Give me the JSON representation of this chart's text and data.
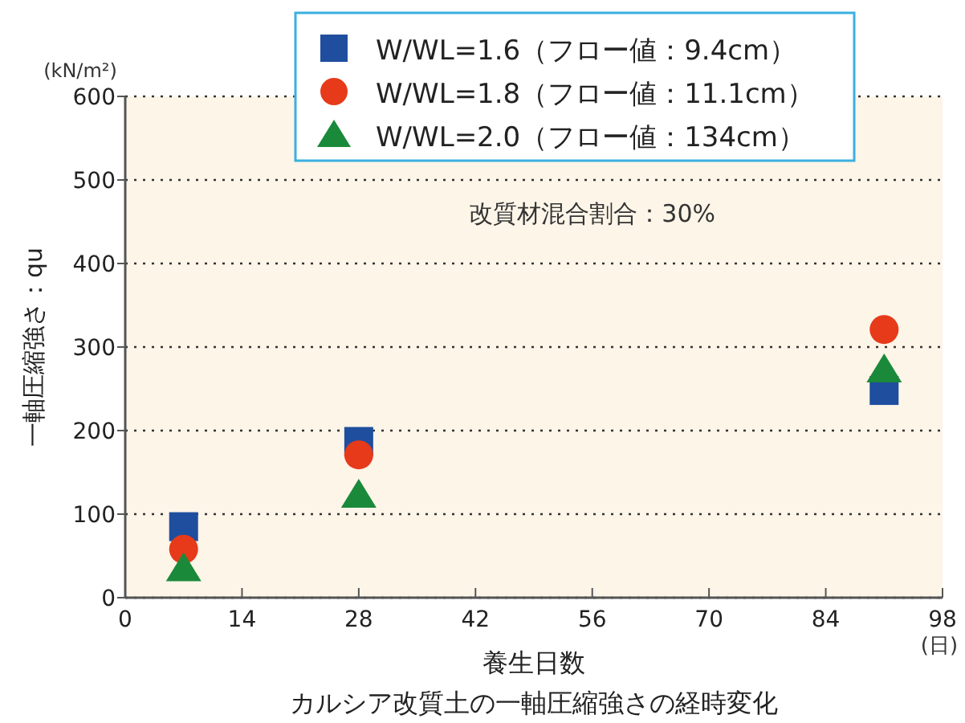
{
  "chart_data": {
    "type": "scatter",
    "title": "カルシア改質土の一軸圧縮強さの経時変化",
    "xlabel": "養生日数",
    "ylabel": "一軸圧縮強さ：qu",
    "annotations": [
      "(kN/m²)",
      "(日)",
      "改質材混合割合：30%"
    ],
    "x": [
      7,
      28,
      91
    ],
    "series": [
      {
        "name": "W/WL=1.6（フロー値：9.4cm）",
        "color": "#1f4e9e",
        "marker": "square",
        "values": [
          85,
          187,
          248
        ]
      },
      {
        "name": "W/WL=1.8（フロー値：11.1cm）",
        "color": "#e63a1a",
        "marker": "circle",
        "values": [
          58,
          171,
          321
        ]
      },
      {
        "name": "W/WL=2.0（フロー値：134cm）",
        "color": "#1a8a3a",
        "marker": "triangle",
        "values": [
          35,
          123,
          273
        ]
      }
    ],
    "xlim": [
      0,
      98
    ],
    "xticks": [
      0,
      14,
      28,
      42,
      56,
      70,
      84,
      98
    ],
    "ylim": [
      0,
      600
    ],
    "yticks": [
      0,
      100,
      200,
      300,
      400,
      500,
      600
    ],
    "grid": "y",
    "legend": "top"
  }
}
